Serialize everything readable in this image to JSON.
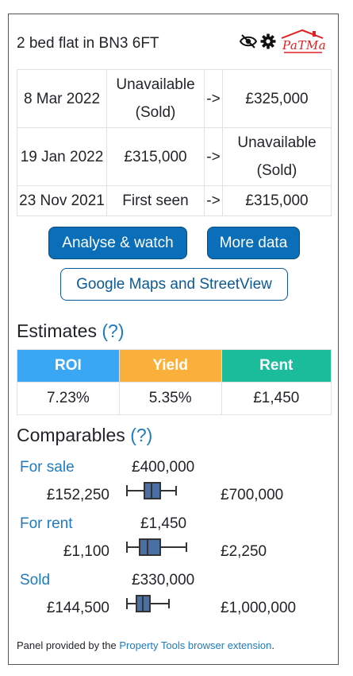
{
  "header": {
    "title": "2 bed flat in BN3 6FT",
    "logo_text": "PaTMa"
  },
  "history": [
    {
      "date": "8 Mar 2022",
      "from_line1": "Unavailable",
      "from_line2": "(Sold)",
      "arrow": "->",
      "to_line1": "£325,000",
      "to_line2": ""
    },
    {
      "date": "19 Jan 2022",
      "from_line1": "£315,000",
      "from_line2": "",
      "arrow": "->",
      "to_line1": "Unavailable",
      "to_line2": "(Sold)"
    },
    {
      "date": "23 Nov 2021",
      "from_line1": "First seen",
      "from_line2": "",
      "arrow": "->",
      "to_line1": "£315,000",
      "to_line2": ""
    }
  ],
  "buttons": {
    "analyse": "Analyse & watch",
    "more_data": "More data",
    "maps": "Google Maps and StreetView"
  },
  "estimates": {
    "title": "Estimates",
    "help": "(?)",
    "headers": [
      {
        "label": "ROI",
        "color": "#3aa7f5"
      },
      {
        "label": "Yield",
        "color": "#fbb03b"
      },
      {
        "label": "Rent",
        "color": "#1abc9c"
      }
    ],
    "values": [
      "7.23%",
      "5.35%",
      "£1,450"
    ]
  },
  "comparables": {
    "title": "Comparables",
    "help": "(?)",
    "box_color": "#4a6fa5",
    "rows": [
      {
        "label": "For sale",
        "median": "£400,000",
        "min": "£152,250",
        "max": "£700,000"
      },
      {
        "label": "For rent",
        "median": "£1,450",
        "min": "£1,100",
        "max": "£2,250"
      },
      {
        "label": "Sold",
        "median": "£330,000",
        "min": "£144,500",
        "max": "£1,000,000"
      }
    ]
  },
  "footer": {
    "prefix": "Panel provided by the ",
    "link": "Property Tools browser extension",
    "suffix": "."
  }
}
